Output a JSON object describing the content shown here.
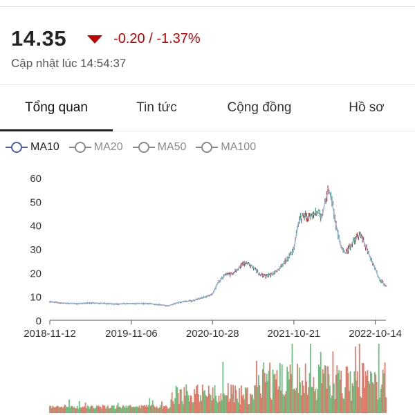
{
  "quote": {
    "price": "14.35",
    "change": "-0.20 / -1.37%",
    "updated": "Cập nhật lúc 14:54:37"
  },
  "tabs": [
    {
      "label": "Tổng quan",
      "active": true
    },
    {
      "label": "Tin tức",
      "active": false
    },
    {
      "label": "Cộng đồng",
      "active": false
    },
    {
      "label": "Hồ sơ",
      "active": false
    }
  ],
  "legend": [
    {
      "label": "MA10",
      "active": true,
      "color": "#4a5fa8"
    },
    {
      "label": "MA20",
      "active": false,
      "color": "#8a8a8a"
    },
    {
      "label": "MA50",
      "active": false,
      "color": "#8a8a8a"
    },
    {
      "label": "MA100",
      "active": false,
      "color": "#8a8a8a"
    }
  ],
  "colors": {
    "down": "#c00000",
    "candle_up": "#2e8b57",
    "candle_down": "#b22222",
    "ma10": "#8fb3e0",
    "volume_up": "#6bbf80",
    "volume_down": "#e07a6a"
  },
  "chart_data": {
    "type": "line",
    "y_ticks": [
      0,
      10,
      20,
      30,
      40,
      50,
      60
    ],
    "x_tick_labels": [
      "2018-11-12",
      "2019-11-06",
      "2020-10-28",
      "2021-10-21",
      "2022-10-14"
    ],
    "ylim": [
      0,
      60
    ],
    "xlim": [
      "2018-11-12",
      "2022-11-30"
    ],
    "series": [
      {
        "x": [
          "2018-11-12",
          "2019-01-15",
          "2019-03-15",
          "2019-05-15",
          "2019-07-15",
          "2019-09-15",
          "2019-11-06",
          "2020-01-15",
          "2020-03-20",
          "2020-04-15",
          "2020-06-01",
          "2020-08-01",
          "2020-09-15",
          "2020-10-28",
          "2020-11-20",
          "2020-12-20",
          "2021-01-20",
          "2021-02-20",
          "2021-03-20",
          "2021-04-20",
          "2021-05-20",
          "2021-06-20",
          "2021-07-20",
          "2021-08-20",
          "2021-09-20",
          "2021-10-21",
          "2021-11-10",
          "2021-12-01",
          "2021-12-20",
          "2022-01-10",
          "2022-02-01",
          "2022-02-20",
          "2022-03-10",
          "2022-03-25",
          "2022-04-10",
          "2022-04-25",
          "2022-05-15",
          "2022-06-05",
          "2022-06-25",
          "2022-07-15",
          "2022-08-10",
          "2022-08-25",
          "2022-09-15",
          "2022-10-14",
          "2022-10-28",
          "2022-11-15",
          "2022-11-30"
        ],
        "values": [
          7.8,
          7.2,
          7.0,
          7.3,
          7.0,
          6.9,
          7.0,
          7.1,
          6.4,
          6.0,
          7.6,
          8.2,
          9.5,
          11.0,
          15.5,
          19.0,
          19.5,
          22.0,
          24.5,
          23.0,
          19.5,
          18.5,
          19.5,
          22.0,
          25.5,
          30.0,
          41.0,
          45.0,
          43.0,
          44.0,
          46.0,
          43.0,
          51.0,
          55.0,
          48.0,
          40.0,
          31.0,
          28.0,
          31.0,
          34.0,
          36.0,
          33.0,
          28.0,
          22.0,
          18.0,
          16.0,
          14.35
        ]
      }
    ]
  }
}
